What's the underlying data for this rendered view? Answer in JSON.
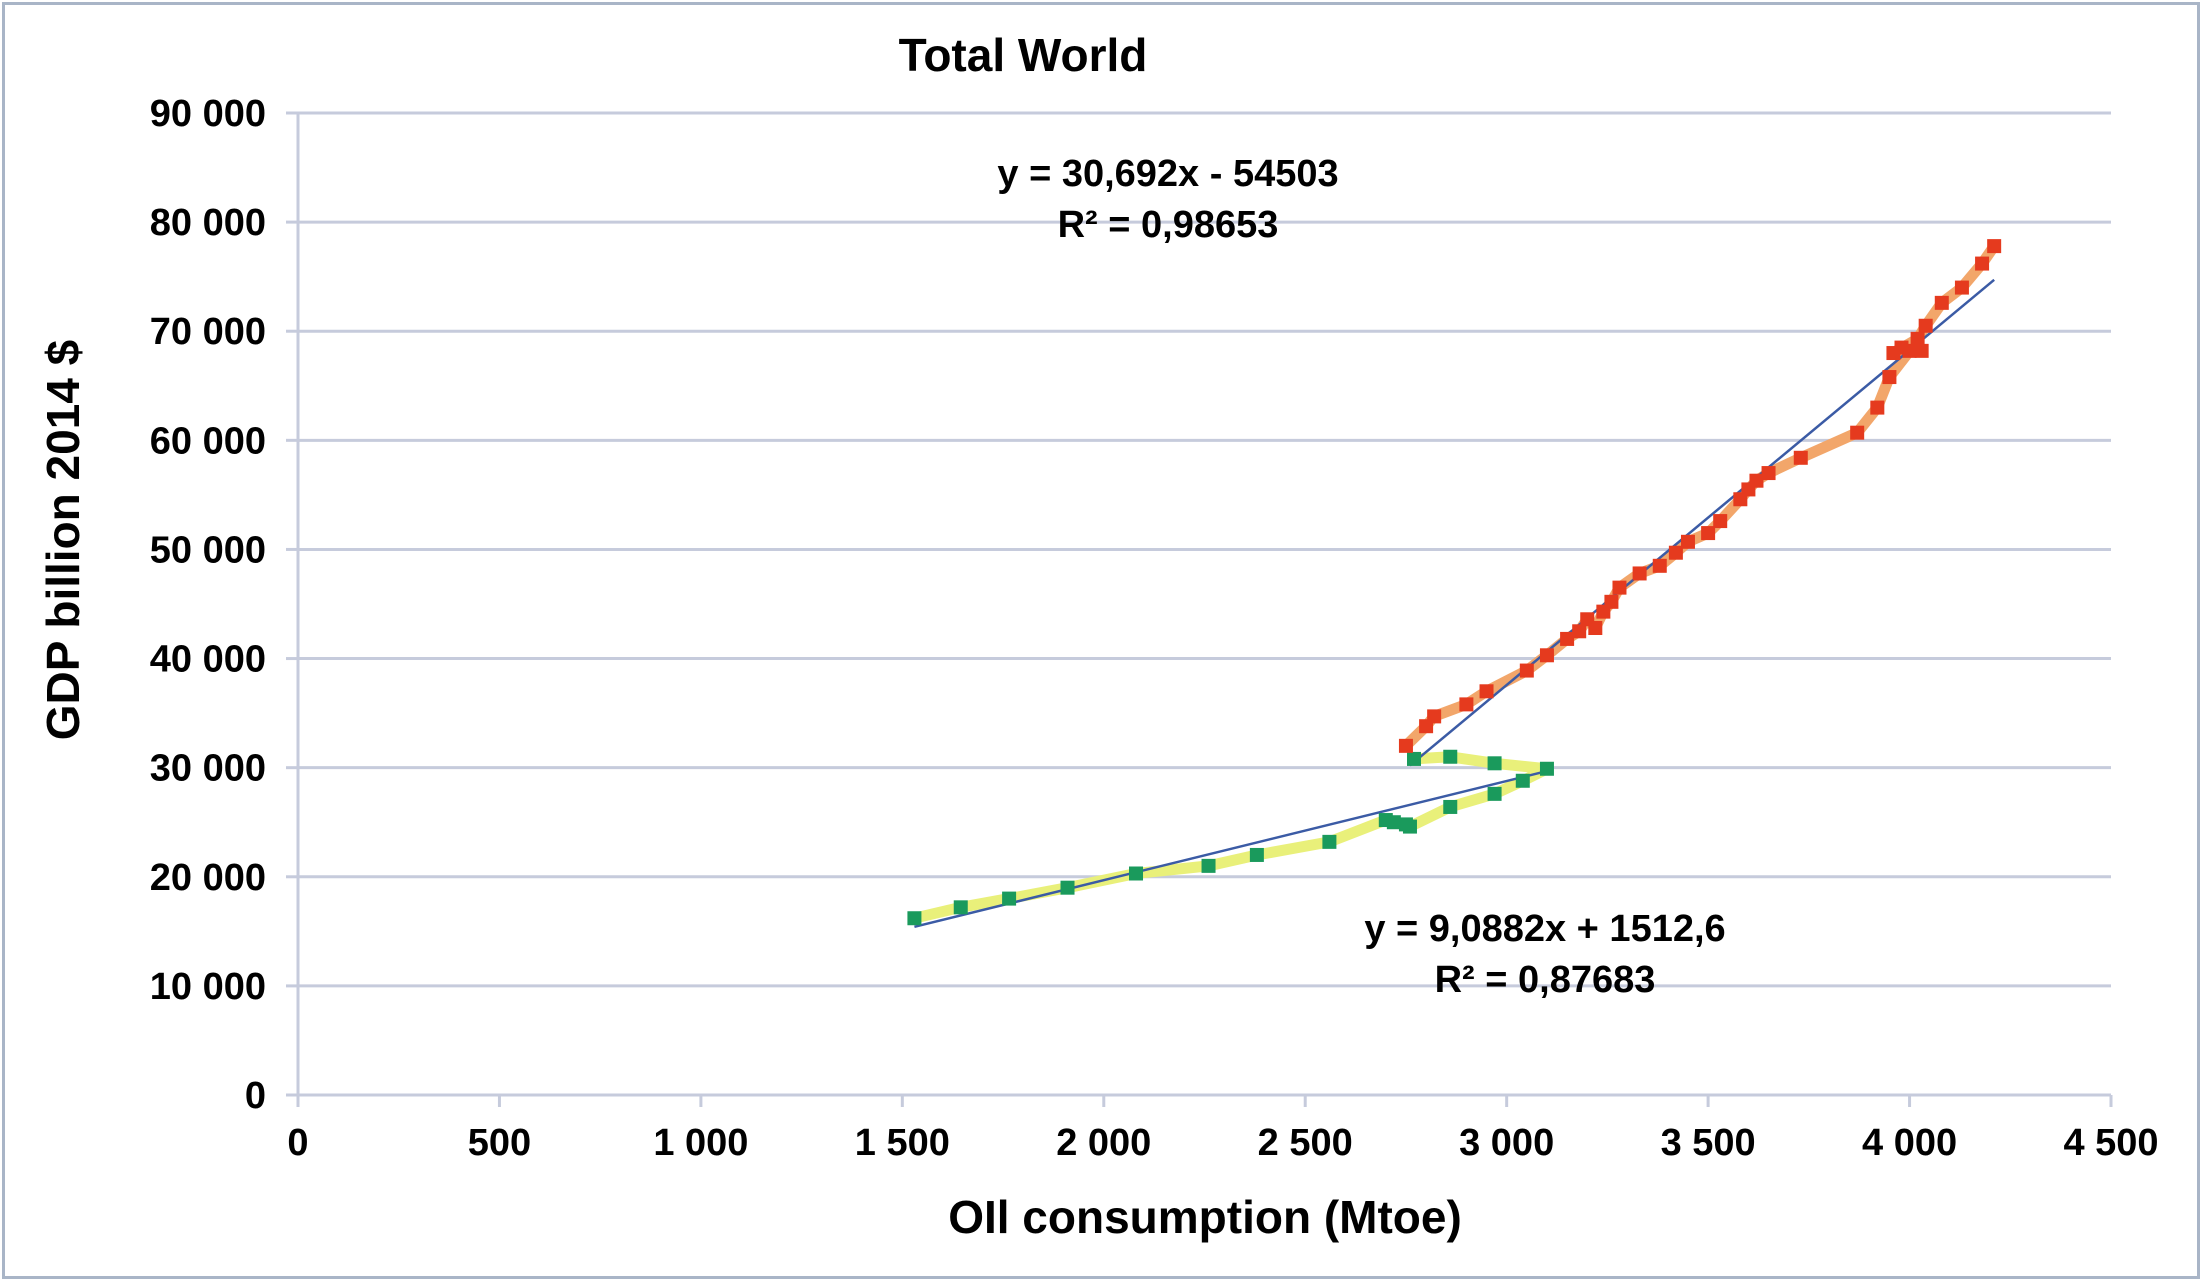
{
  "chart_data": {
    "type": "scatter",
    "title": "Total World",
    "xlabel": "OIl consumption (Mtoe)",
    "ylabel": "GDP billion 2014 $",
    "xlim": [
      0,
      4500
    ],
    "ylim": [
      0,
      90000
    ],
    "x_ticks": [
      "0",
      "500",
      "1 000",
      "1 500",
      "2 000",
      "2 500",
      "3 000",
      "3 500",
      "4 000",
      "4 500"
    ],
    "y_ticks": [
      "0",
      "10 000",
      "20 000",
      "30 000",
      "40 000",
      "50 000",
      "60 000",
      "70 000",
      "80 000",
      "90 000"
    ],
    "grid": "horizontal",
    "series": [
      {
        "marker": "square",
        "color": "#1a9a5c",
        "line_color": "#e9f07a",
        "x": [
          1530,
          1645,
          1765,
          1910,
          2080,
          2260,
          2380,
          2560,
          2700,
          2720,
          2750,
          2760,
          2860,
          2970,
          3040,
          3100,
          2970,
          2860,
          2770
        ],
        "y": [
          16200,
          17200,
          18000,
          19000,
          20300,
          21000,
          22000,
          23200,
          25200,
          25000,
          24800,
          24600,
          26400,
          27600,
          28800,
          29900,
          30400,
          31000,
          30800
        ]
      },
      {
        "marker": "square",
        "color": "#e53a1e",
        "line_color": "#f2a66a",
        "x": [
          2750,
          2800,
          2820,
          2900,
          2950,
          3050,
          3100,
          3150,
          3180,
          3200,
          3220,
          3240,
          3260,
          3280,
          3330,
          3380,
          3420,
          3450,
          3500,
          3530,
          3580,
          3600,
          3620,
          3650,
          3730,
          3870,
          3920,
          3950,
          4000,
          4030,
          3980,
          3960,
          4020,
          4040,
          4080,
          4130,
          4180,
          4210
        ],
        "y": [
          32000,
          33800,
          34700,
          35800,
          37000,
          38900,
          40300,
          41800,
          42500,
          43600,
          42800,
          44300,
          45200,
          46500,
          47800,
          48500,
          49700,
          50700,
          51500,
          52600,
          54600,
          55500,
          56300,
          57000,
          58400,
          60700,
          63000,
          65800,
          68200,
          68200,
          68500,
          68000,
          69300,
          70500,
          72600,
          74000,
          76200,
          77800
        ]
      }
    ],
    "trendlines": [
      {
        "equation": "y = 30,692x - 54503",
        "r2": "R² = 0,98653",
        "slope": 30.692,
        "intercept": -54503,
        "x_range": [
          2760,
          4210
        ]
      },
      {
        "equation": "y = 9,0882x + 1512,6",
        "r2": "R² = 0,87683",
        "slope": 9.0882,
        "intercept": 1512.6,
        "x_range": [
          1530,
          3100
        ]
      }
    ]
  }
}
